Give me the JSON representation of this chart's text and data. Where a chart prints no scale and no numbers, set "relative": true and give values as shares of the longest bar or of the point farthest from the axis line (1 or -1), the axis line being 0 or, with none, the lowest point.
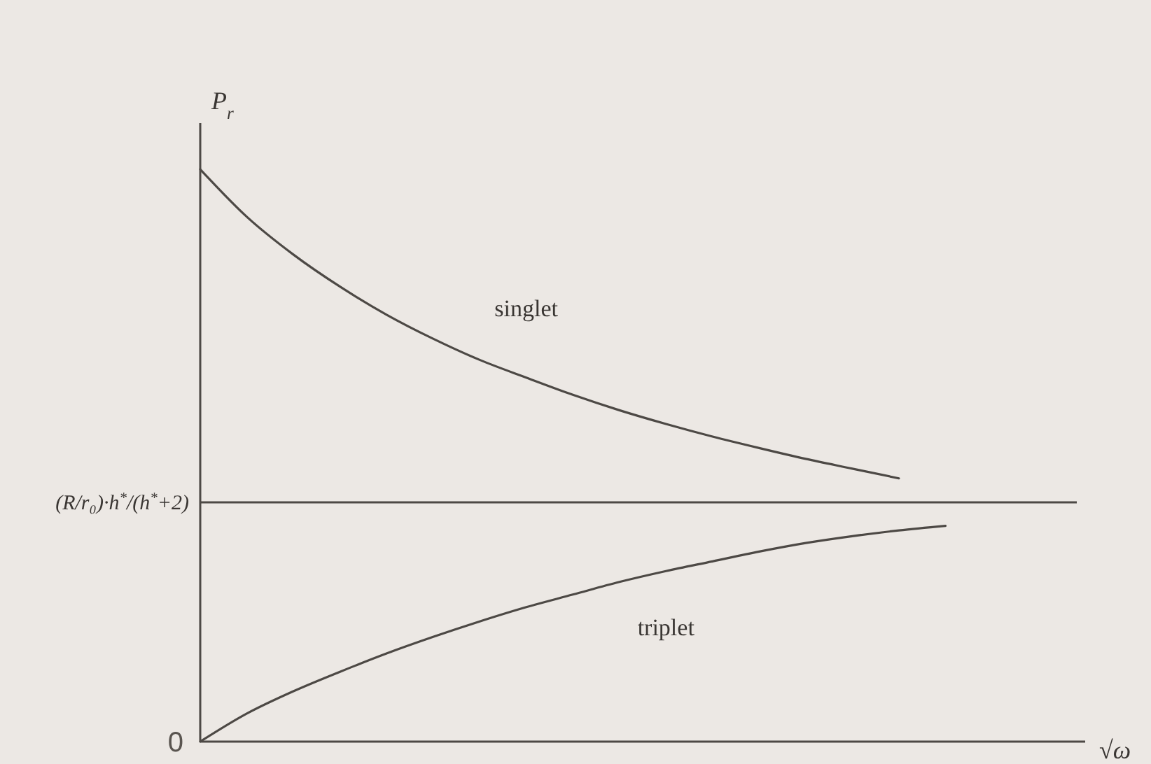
{
  "chart_data": {
    "type": "line",
    "relative": true,
    "ylabel": "P$_{r}$",
    "xlabel": "√ω",
    "categories": [
      null,
      null,
      null,
      null,
      null,
      null,
      null,
      null,
      null,
      null,
      null,
      null,
      null,
      null,
      null,
      null,
      null,
      null,
      null,
      null
    ],
    "series": [
      {
        "name": "singlet",
        "color": "#4d4945",
        "values": [
          1.0,
          0.917,
          0.851,
          0.795,
          0.746,
          0.704,
          0.667,
          0.636,
          0.606,
          0.579,
          0.555,
          0.533,
          0.513,
          0.494,
          0.477,
          0.46,
          null,
          null,
          null,
          null
        ]
      },
      {
        "name": "triplet",
        "color": "#4d4945",
        "values": [
          0,
          0.049,
          0.088,
          0.122,
          0.154,
          0.183,
          0.21,
          0.235,
          0.257,
          0.279,
          0.298,
          0.315,
          0.332,
          0.347,
          0.359,
          0.369,
          0.377,
          null,
          null,
          null
        ]
      }
    ],
    "ref_lines": [
      {
        "axis": "y",
        "value": 0.418,
        "label": "(R/r₀)·h$^{*}$/(h$^{*}$+2)",
        "color": "#4d4945"
      }
    ],
    "annotations": [
      "0"
    ]
  }
}
